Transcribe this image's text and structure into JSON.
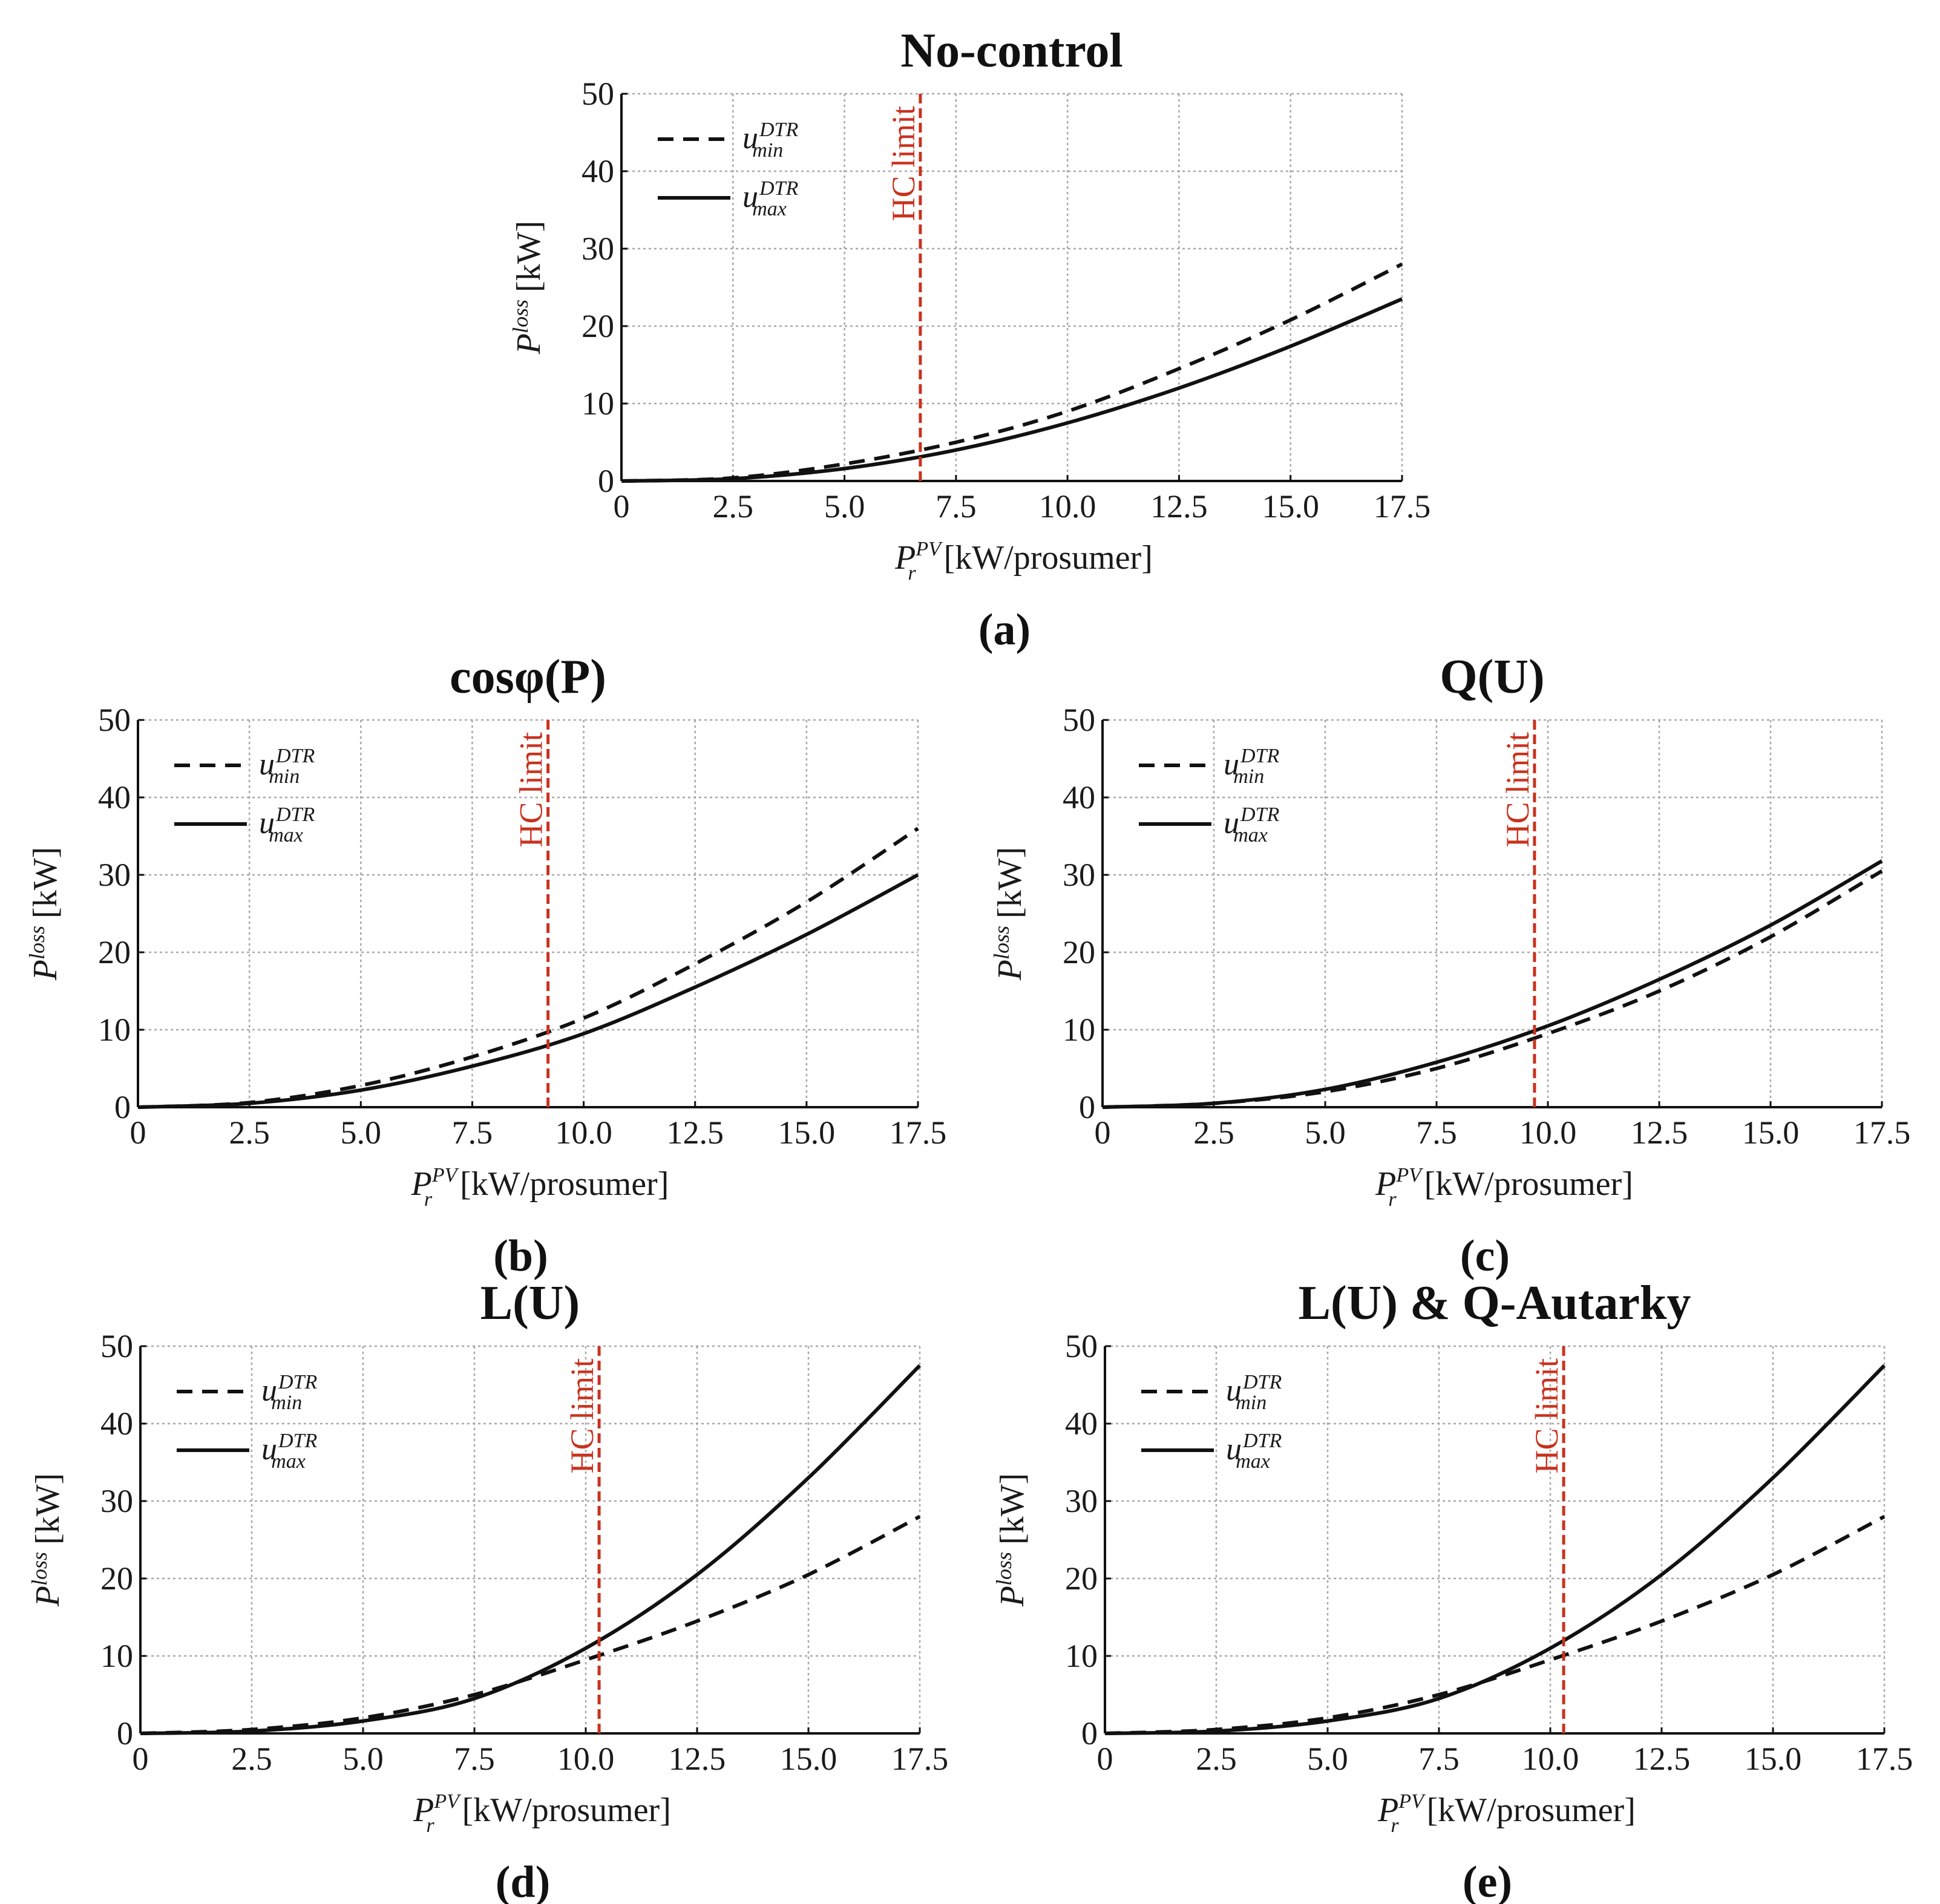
{
  "chart_data": [
    {
      "id": "a",
      "type": "line",
      "title": "No-control",
      "caption": "(a)",
      "xlabel": "[kW/prosumer]",
      "ylabel": "[kW]",
      "xlim": [
        0,
        17.5
      ],
      "ylim": [
        0,
        50
      ],
      "xticks": [
        "0",
        "2.5",
        "5.0",
        "7.5",
        "10.0",
        "12.5",
        "15.0",
        "17.5"
      ],
      "yticks": [
        "0",
        "10",
        "20",
        "30",
        "40",
        "50"
      ],
      "hc_limit": {
        "x": 6.7,
        "label": "HC limit"
      },
      "x": [
        0,
        2.5,
        5.0,
        7.5,
        10.0,
        12.5,
        15.0,
        17.5
      ],
      "series": [
        {
          "name": "u_min^DTR",
          "style": "dashed",
          "values": [
            0,
            0.4,
            2.2,
            5.0,
            9.0,
            14.5,
            20.8,
            28.0
          ]
        },
        {
          "name": "u_max^DTR",
          "style": "solid",
          "values": [
            0,
            0.3,
            1.6,
            4.0,
            7.5,
            12.0,
            17.4,
            23.5
          ]
        }
      ]
    },
    {
      "id": "b",
      "type": "line",
      "title": "cosφ(P)",
      "caption": "(b)",
      "xlabel": "[kW/prosumer]",
      "ylabel": "[kW]",
      "xlim": [
        0,
        17.5
      ],
      "ylim": [
        0,
        50
      ],
      "xticks": [
        "0",
        "2.5",
        "5.0",
        "7.5",
        "10.0",
        "12.5",
        "15.0",
        "17.5"
      ],
      "yticks": [
        "0",
        "10",
        "20",
        "30",
        "40",
        "50"
      ],
      "hc_limit": {
        "x": 9.2,
        "label": "HC limit"
      },
      "x": [
        0,
        2.5,
        5.0,
        7.5,
        10.0,
        12.5,
        15.0,
        17.5
      ],
      "series": [
        {
          "name": "u_min^DTR",
          "style": "dashed",
          "values": [
            0,
            0.6,
            2.8,
            6.5,
            11.5,
            18.5,
            26.5,
            36.0
          ]
        },
        {
          "name": "u_max^DTR",
          "style": "solid",
          "values": [
            0,
            0.5,
            2.2,
            5.3,
            9.5,
            15.5,
            22.3,
            30.0
          ]
        }
      ]
    },
    {
      "id": "c",
      "type": "line",
      "title": "Q(U)",
      "caption": "(c)",
      "xlabel": "[kW/prosumer]",
      "ylabel": "[kW]",
      "xlim": [
        0,
        17.5
      ],
      "ylim": [
        0,
        50
      ],
      "xticks": [
        "0",
        "2.5",
        "5.0",
        "7.5",
        "10.0",
        "12.5",
        "15.0",
        "17.5"
      ],
      "yticks": [
        "0",
        "10",
        "20",
        "30",
        "40",
        "50"
      ],
      "hc_limit": {
        "x": 9.7,
        "label": "HC limit"
      },
      "x": [
        0,
        2.5,
        5.0,
        7.5,
        10.0,
        12.5,
        15.0,
        17.5
      ],
      "series": [
        {
          "name": "u_min^DTR",
          "style": "dashed",
          "values": [
            0,
            0.5,
            2.0,
            5.0,
            9.5,
            15.0,
            22.0,
            30.5
          ]
        },
        {
          "name": "u_max^DTR",
          "style": "solid",
          "values": [
            0,
            0.5,
            2.3,
            5.8,
            10.5,
            16.5,
            23.5,
            31.8
          ]
        }
      ]
    },
    {
      "id": "d",
      "type": "line",
      "title": "L(U)",
      "caption": "(d)",
      "xlabel": "[kW/prosumer]",
      "ylabel": "[kW]",
      "xlim": [
        0,
        17.5
      ],
      "ylim": [
        0,
        50
      ],
      "xticks": [
        "0",
        "2.5",
        "5.0",
        "7.5",
        "10.0",
        "12.5",
        "15.0",
        "17.5"
      ],
      "yticks": [
        "0",
        "10",
        "20",
        "30",
        "40",
        "50"
      ],
      "hc_limit": {
        "x": 10.3,
        "label": "HC limit"
      },
      "x": [
        0,
        2.5,
        5.0,
        7.5,
        10.0,
        12.5,
        15.0,
        17.5
      ],
      "series": [
        {
          "name": "u_min^DTR",
          "style": "dashed",
          "values": [
            0,
            0.5,
            2.0,
            5.0,
            9.5,
            14.5,
            20.5,
            28.0
          ]
        },
        {
          "name": "u_max^DTR",
          "style": "solid",
          "values": [
            0,
            0.3,
            1.6,
            4.5,
            11.0,
            20.5,
            33.0,
            47.5
          ]
        }
      ]
    },
    {
      "id": "e",
      "type": "line",
      "title": "L(U) & Q-Autarky",
      "caption": "(e)",
      "xlabel": "[kW/prosumer]",
      "ylabel": "[kW]",
      "xlim": [
        0,
        17.5
      ],
      "ylim": [
        0,
        50
      ],
      "xticks": [
        "0",
        "2.5",
        "5.0",
        "7.5",
        "10.0",
        "12.5",
        "15.0",
        "17.5"
      ],
      "yticks": [
        "0",
        "10",
        "20",
        "30",
        "40",
        "50"
      ],
      "hc_limit": {
        "x": 10.3,
        "label": "HC limit"
      },
      "x": [
        0,
        2.5,
        5.0,
        7.5,
        10.0,
        12.5,
        15.0,
        17.5
      ],
      "series": [
        {
          "name": "u_min^DTR",
          "style": "dashed",
          "values": [
            0,
            0.5,
            2.0,
            5.0,
            9.5,
            14.5,
            20.5,
            28.0
          ]
        },
        {
          "name": "u_max^DTR",
          "style": "solid",
          "values": [
            0,
            0.3,
            1.6,
            4.5,
            11.0,
            20.5,
            33.0,
            47.5
          ]
        }
      ]
    }
  ]
}
